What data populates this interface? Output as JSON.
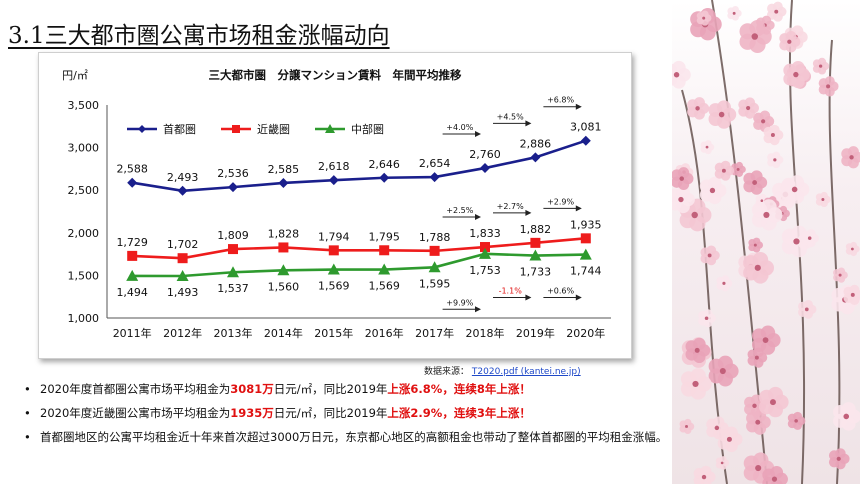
{
  "page": {
    "heading": "3.1三大都市圏公寓市场租金涨幅动向",
    "source_label": "数据来源：",
    "source_link": "T2020.pdf (kantei.ne.jp)"
  },
  "bullets": [
    {
      "pre": "2020年度首都圏公寓市场平均租金为",
      "hl1": "3081万",
      "mid": "日元/㎡，同比2019年",
      "hl2": "上涨6.8%，连续8年上涨！"
    },
    {
      "pre": "2020年度近畿圏公寓市场平均租金为",
      "hl1": "1935万",
      "mid": "日元/㎡，同比2019年",
      "hl2": "上涨2.9%，连续3年上涨！"
    },
    {
      "text": "首都圏地区的公寓平均租金近十年来首次超过3000万日元，东京都心地区的高额租金也带动了整体首都圏的平均租金涨幅。"
    }
  ],
  "chart_data": {
    "type": "line",
    "title": "三大都市圏　分譲マンション賃料　年間平均推移",
    "ylabel": "円/㎡",
    "categories": [
      "2011年",
      "2012年",
      "2013年",
      "2014年",
      "2015年",
      "2016年",
      "2017年",
      "2018年",
      "2019年",
      "2020年"
    ],
    "yticks": [
      "1,000",
      "1,500",
      "2,000",
      "2,500",
      "3,000",
      "3,500"
    ],
    "ylim": [
      1000,
      3500
    ],
    "grid": false,
    "legend": "top-left",
    "series": [
      {
        "name": "首都圏",
        "color": "#1a1f8c",
        "marker": "diamond",
        "values": [
          2588,
          2493,
          2536,
          2585,
          2618,
          2646,
          2654,
          2760,
          2886,
          3081
        ],
        "labels": [
          "2,588",
          "2,493",
          "2,536",
          "2,585",
          "2,618",
          "2,646",
          "2,654",
          "2,760",
          "2,886",
          "3,081"
        ]
      },
      {
        "name": "近畿圏",
        "color": "#ee1c1c",
        "marker": "square",
        "values": [
          1729,
          1702,
          1809,
          1828,
          1794,
          1795,
          1788,
          1833,
          1882,
          1935
        ],
        "labels": [
          "1,729",
          "1,702",
          "1,809",
          "1,828",
          "1,794",
          "1,795",
          "1,788",
          "1,833",
          "1,882",
          "1,935"
        ]
      },
      {
        "name": "中部圏",
        "color": "#2e9a2e",
        "marker": "triangle",
        "values": [
          1494,
          1493,
          1537,
          1560,
          1569,
          1569,
          1595,
          1753,
          1733,
          1744
        ],
        "labels": [
          "1,494",
          "1,493",
          "1,537",
          "1,560",
          "1,569",
          "1,569",
          "1,595",
          "1,753",
          "1,733",
          "1,744"
        ]
      }
    ],
    "annotations": [
      {
        "series": 0,
        "text": "+4.0%",
        "year_index": 7
      },
      {
        "series": 0,
        "text": "+4.5%",
        "year_index": 8
      },
      {
        "series": 0,
        "text": "+6.8%",
        "year_index": 9
      },
      {
        "series": 1,
        "text": "+2.5%",
        "year_index": 7
      },
      {
        "series": 1,
        "text": "+2.7%",
        "year_index": 8
      },
      {
        "series": 1,
        "text": "+2.9%",
        "year_index": 9
      },
      {
        "series": 2,
        "text": "+9.9%",
        "year_index": 7,
        "color": "#111111"
      },
      {
        "series": 2,
        "text": "-1.1%",
        "year_index": 8,
        "color": "#e01010"
      },
      {
        "series": 2,
        "text": "+0.6%",
        "year_index": 9,
        "color": "#111111"
      }
    ]
  }
}
